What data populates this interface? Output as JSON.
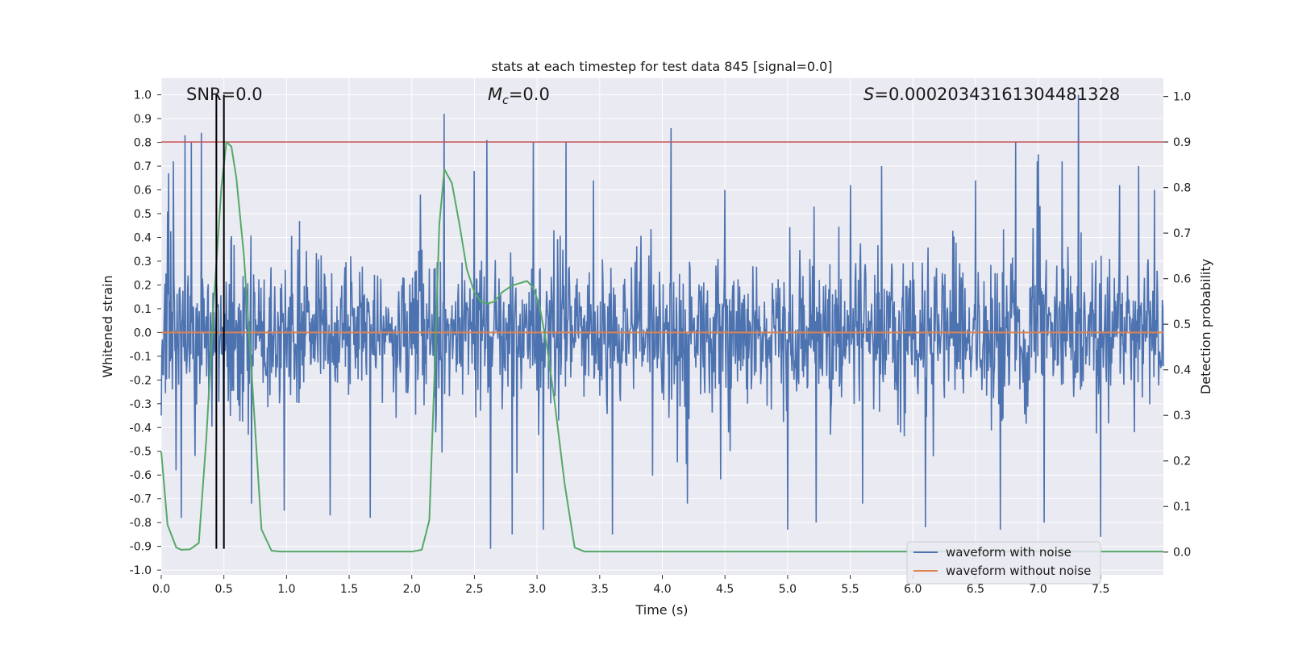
{
  "chart_data": {
    "type": "line",
    "title": "stats at each timestep for test data 845 [signal=0.0]",
    "xlabel": "Time (s)",
    "ylabel": "Whitened strain",
    "y2label": "Detection probability",
    "xlim": [
      0.0,
      8.0
    ],
    "ylim": [
      -1.02,
      1.07
    ],
    "y2lim": [
      -0.05,
      1.04
    ],
    "xticks": [
      "0.0",
      "0.5",
      "1.0",
      "1.5",
      "2.0",
      "2.5",
      "3.0",
      "3.5",
      "4.0",
      "4.5",
      "5.0",
      "5.5",
      "6.0",
      "6.5",
      "7.0",
      "7.5"
    ],
    "xtick_values": [
      0.0,
      0.5,
      1.0,
      1.5,
      2.0,
      2.5,
      3.0,
      3.5,
      4.0,
      4.5,
      5.0,
      5.5,
      6.0,
      6.5,
      7.0,
      7.5
    ],
    "yticks": [
      "1.0",
      "0.9",
      "0.8",
      "0.7",
      "0.6",
      "0.5",
      "0.4",
      "0.3",
      "0.2",
      "0.1",
      "0.0",
      "-0.1",
      "-0.2",
      "-0.3",
      "-0.4",
      "-0.5",
      "-0.6",
      "-0.7",
      "-0.8",
      "-0.9",
      "-1.0"
    ],
    "ytick_values": [
      1.0,
      0.9,
      0.8,
      0.7,
      0.6,
      0.5,
      0.4,
      0.3,
      0.2,
      0.1,
      0.0,
      -0.1,
      -0.2,
      -0.3,
      -0.4,
      -0.5,
      -0.6,
      -0.7,
      -0.8,
      -0.9,
      -1.0
    ],
    "y2ticks": [
      "1.0",
      "0.9",
      "0.8",
      "0.7",
      "0.6",
      "0.5",
      "0.4",
      "0.3",
      "0.2",
      "0.1",
      "0.0"
    ],
    "y2tick_values": [
      1.0,
      0.9,
      0.8,
      0.7,
      0.6,
      0.5,
      0.4,
      0.3,
      0.2,
      0.1,
      0.0
    ],
    "annotations": {
      "snr": "SNR=0.0",
      "mc_symbol": "M",
      "mc_sub": "c",
      "mc_value": "=0.0",
      "s_symbol": "S",
      "s_value": "=0.00020343161304481328"
    },
    "threshold_y2": 0.9,
    "vlines_x": [
      0.44,
      0.5
    ],
    "vlines_y": [
      -0.91,
      1.0
    ],
    "noise": {
      "name": "waveform with noise",
      "color": "#4c72b0",
      "core_amplitude": 0.22,
      "peaks": [
        [
          0.06,
          0.67
        ],
        [
          0.12,
          -0.58
        ],
        [
          0.19,
          0.83
        ],
        [
          0.24,
          0.8
        ],
        [
          0.27,
          -0.52
        ],
        [
          0.32,
          0.84
        ],
        [
          0.16,
          -0.78
        ],
        [
          0.72,
          -0.72
        ],
        [
          0.98,
          -0.75
        ],
        [
          1.35,
          -0.77
        ],
        [
          1.67,
          -0.78
        ],
        [
          2.07,
          0.58
        ],
        [
          2.26,
          0.92
        ],
        [
          2.5,
          0.68
        ],
        [
          2.6,
          0.81
        ],
        [
          2.63,
          -0.91
        ],
        [
          2.8,
          -0.85
        ],
        [
          2.97,
          0.8
        ],
        [
          3.05,
          -0.83
        ],
        [
          3.23,
          0.8
        ],
        [
          3.45,
          0.64
        ],
        [
          3.6,
          -0.85
        ],
        [
          4.07,
          0.86
        ],
        [
          4.2,
          -0.72
        ],
        [
          4.5,
          0.6
        ],
        [
          5.0,
          -0.83
        ],
        [
          5.23,
          -0.8
        ],
        [
          5.5,
          0.62
        ],
        [
          5.6,
          -0.72
        ],
        [
          5.75,
          0.7
        ],
        [
          6.1,
          -0.82
        ],
        [
          6.5,
          0.64
        ],
        [
          6.7,
          -0.83
        ],
        [
          6.82,
          0.8
        ],
        [
          7.0,
          0.75
        ],
        [
          7.05,
          -0.8
        ],
        [
          7.32,
          1.0
        ],
        [
          7.5,
          -0.86
        ],
        [
          7.65,
          0.62
        ],
        [
          7.8,
          0.7
        ],
        [
          7.93,
          0.6
        ]
      ]
    },
    "clean": {
      "name": "waveform without noise",
      "color": "#dd8452",
      "x": [
        0.0,
        8.0
      ],
      "y": [
        0.0,
        0.0
      ]
    },
    "probability": {
      "color": "#55a868",
      "x": [
        0.0,
        0.05,
        0.12,
        0.16,
        0.23,
        0.3,
        0.36,
        0.42,
        0.48,
        0.52,
        0.56,
        0.6,
        0.66,
        0.72,
        0.8,
        0.88,
        0.95,
        1.2,
        1.6,
        2.0,
        2.08,
        2.14,
        2.18,
        2.22,
        2.26,
        2.32,
        2.38,
        2.44,
        2.5,
        2.55,
        2.6,
        2.66,
        2.72,
        2.8,
        2.86,
        2.92,
        2.97,
        3.02,
        3.08,
        3.14,
        3.22,
        3.3,
        3.38,
        3.45,
        8.0
      ],
      "y": [
        0.22,
        0.06,
        0.01,
        0.005,
        0.006,
        0.02,
        0.25,
        0.55,
        0.8,
        0.9,
        0.89,
        0.82,
        0.65,
        0.4,
        0.05,
        0.003,
        0.001,
        0.001,
        0.001,
        0.001,
        0.005,
        0.07,
        0.38,
        0.72,
        0.84,
        0.81,
        0.72,
        0.62,
        0.57,
        0.55,
        0.545,
        0.55,
        0.57,
        0.585,
        0.59,
        0.595,
        0.58,
        0.54,
        0.45,
        0.33,
        0.15,
        0.01,
        0.001,
        0.001,
        0.001
      ]
    },
    "legend": {
      "position": "lower-right",
      "entries": [
        "waveform with noise",
        "waveform without noise"
      ]
    },
    "grid": true,
    "colors": {
      "plot_background": "#eaeaf2",
      "grid": "#ffffff",
      "threshold": "#c44e52",
      "vline": "#000000"
    }
  }
}
